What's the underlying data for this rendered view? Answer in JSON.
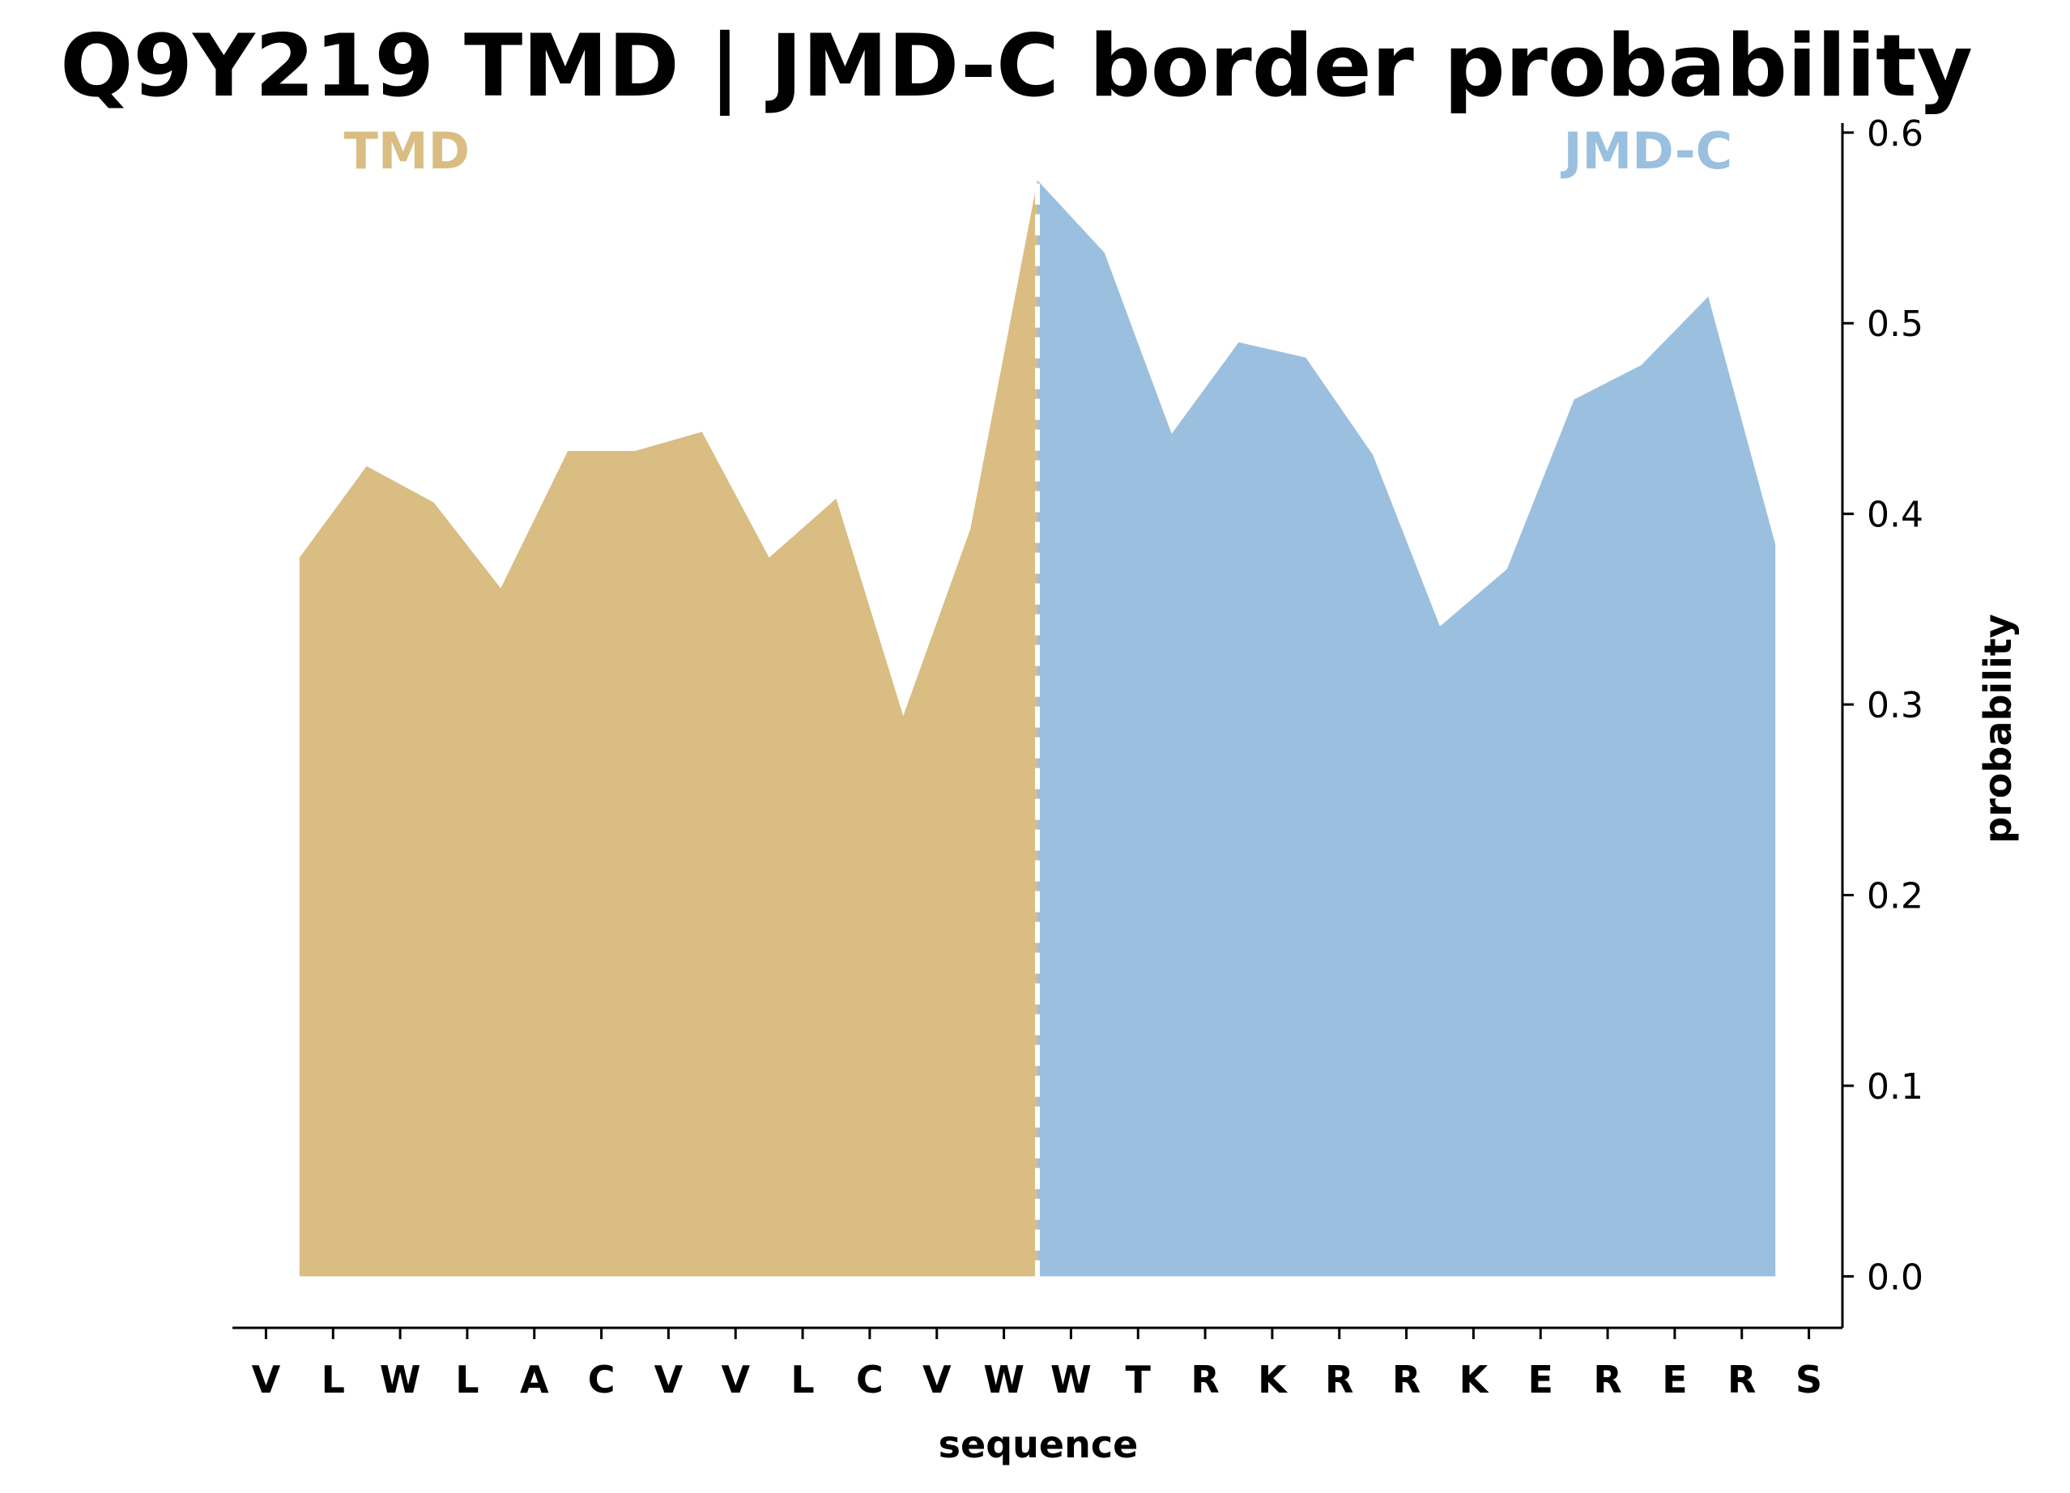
{
  "chart_data": {
    "type": "area",
    "title": "Q9Y219 TMD | JMD-C border probability",
    "xlabel": "sequence",
    "ylabel": "probability",
    "ylim": [
      -0.027,
      0.605
    ],
    "yticks": [
      "0.0",
      "0.1",
      "0.2",
      "0.3",
      "0.4",
      "0.5",
      "0.6"
    ],
    "ytick_values": [
      0.0,
      0.1,
      0.2,
      0.3,
      0.4,
      0.5,
      0.6
    ],
    "y_axis_position": "right",
    "grid": false,
    "categories": [
      "V",
      "L",
      "W",
      "L",
      "A",
      "C",
      "V",
      "V",
      "L",
      "C",
      "V",
      "W",
      "W",
      "T",
      "R",
      "K",
      "R",
      "R",
      "K",
      "E",
      "R",
      "E",
      "R",
      "S"
    ],
    "border_x": 11.5,
    "series": [
      {
        "name": "TMD",
        "color": "#d9bd82",
        "x": [
          0.5,
          1.5,
          2.5,
          3.5,
          4.5,
          5.5,
          6.5,
          7.5,
          8.5,
          9.5,
          10.5,
          11.5
        ],
        "values": [
          0.377,
          0.425,
          0.406,
          0.361,
          0.433,
          0.433,
          0.443,
          0.377,
          0.408,
          0.294,
          0.392,
          0.575
        ]
      },
      {
        "name": "JMD-C",
        "color": "#9bc0df",
        "x": [
          11.5,
          12.5,
          13.5,
          14.5,
          15.5,
          16.5,
          17.5,
          18.5,
          19.5,
          20.5,
          21.5,
          22.5
        ],
        "values": [
          0.575,
          0.537,
          0.442,
          0.49,
          0.482,
          0.431,
          0.341,
          0.371,
          0.46,
          0.478,
          0.514,
          0.384
        ]
      }
    ],
    "region_labels": [
      {
        "text": "TMD",
        "color": "#d9bd82",
        "x": 2.1
      },
      {
        "text": "JMD-C",
        "color": "#9bc0df",
        "x": 20.6
      }
    ]
  }
}
